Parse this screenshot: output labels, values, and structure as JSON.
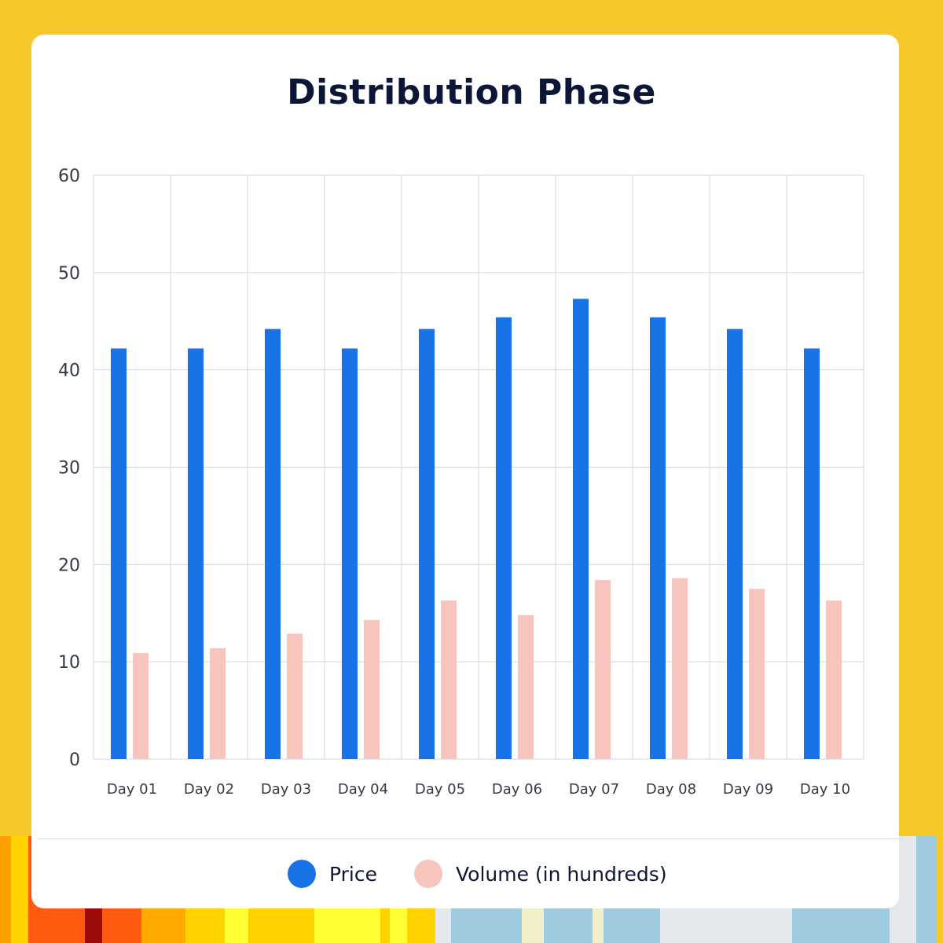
{
  "colors": {
    "background": "#f5c729",
    "card": "#ffffff",
    "price": "#1874e6",
    "volume": "#f8c5be",
    "grid": "#cfd6de",
    "text": "#0c1636",
    "tick": "#333a44",
    "stripes": [
      "#ff9f00",
      "#ffd200",
      "#ff5a10",
      "#ff5a10",
      "#9c0a0a",
      "#ff5a10",
      "#ffa800",
      "#ffd200",
      "#ffff33",
      "#ffd200",
      "#ffff33",
      "#ffd200",
      "#ffff33",
      "#ffd200",
      "#e5e8ea",
      "#9ecbe0",
      "#f2f0c9",
      "#9ecbe0",
      "#f2f0c9",
      "#9ecbe0",
      "#e5e8ea",
      "#9ecbe0",
      "#e5e8ea",
      "#9ecbe0"
    ]
  },
  "chart_data": {
    "type": "bar",
    "title": "Distribution Phase",
    "xlabel": "",
    "ylabel": "",
    "ylim": [
      0,
      60
    ],
    "yticks": [
      0,
      10,
      20,
      30,
      40,
      50,
      60
    ],
    "grid": true,
    "legend_position": "bottom",
    "categories": [
      "Day 01",
      "Day 02",
      "Day 03",
      "Day 04",
      "Day 05",
      "Day 06",
      "Day 07",
      "Day 08",
      "Day 09",
      "Day 10"
    ],
    "series": [
      {
        "name": "Price",
        "values": [
          42.2,
          42.2,
          44.2,
          42.2,
          44.2,
          45.4,
          47.3,
          45.4,
          44.2,
          42.2
        ]
      },
      {
        "name": "Volume (in hundreds)",
        "values": [
          10.9,
          11.4,
          12.9,
          14.3,
          16.3,
          14.8,
          18.4,
          18.6,
          17.5,
          16.3
        ]
      }
    ]
  }
}
